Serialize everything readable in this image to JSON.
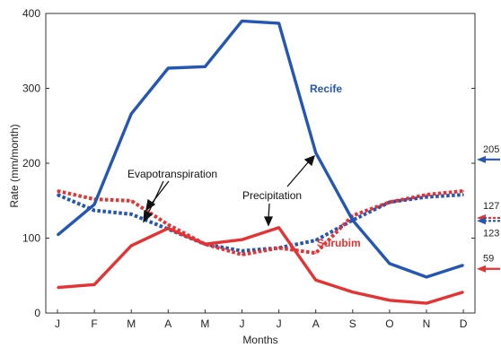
{
  "chart_data": {
    "type": "line",
    "xlabel": "Months",
    "ylabel": "Rate (mm/month)",
    "ylim": [
      0,
      400
    ],
    "yticks": [
      0,
      100,
      200,
      300,
      400
    ],
    "categories": [
      "J",
      "F",
      "M",
      "A",
      "M",
      "J",
      "J",
      "A",
      "S",
      "O",
      "N",
      "D"
    ],
    "series": [
      {
        "name": "Recife",
        "kind": "Precipitation",
        "style": "solid",
        "color": "#2456b4",
        "values": [
          104,
          145,
          266,
          327,
          329,
          390,
          387,
          214,
          124,
          66,
          48,
          64
        ]
      },
      {
        "kind": "Evapotranspiration",
        "style": "dotted",
        "color": "#2456b4",
        "values": [
          158,
          137,
          132,
          112,
          92,
          83,
          87,
          97,
          124,
          148,
          155,
          158
        ]
      },
      {
        "name": "Surubim",
        "kind": "Precipitation",
        "style": "solid",
        "color": "#e53232",
        "values": [
          34,
          38,
          90,
          113,
          92,
          98,
          114,
          44,
          28,
          17,
          13,
          28
        ]
      },
      {
        "kind": "Evapotranspiration",
        "style": "dotted",
        "color": "#e53232",
        "values": [
          163,
          152,
          150,
          118,
          92,
          78,
          87,
          80,
          130,
          148,
          158,
          163
        ]
      }
    ],
    "series_labels": [
      {
        "text": "Recife",
        "color": "#2456b4"
      },
      {
        "text": "Surubim",
        "color": "#e53232"
      }
    ],
    "annotations": {
      "evapotranspiration": "Evapotranspiration",
      "precipitation": "Precipitation"
    },
    "annual_means": [
      {
        "value": 205,
        "label": "205",
        "color": "#2456b4",
        "style": "solid"
      },
      {
        "value": 127,
        "label": "127",
        "color": "#e53232",
        "style": "dotted"
      },
      {
        "value": 123,
        "label": "123",
        "color": "#2456b4",
        "style": "dotted"
      },
      {
        "value": 59,
        "label": "59",
        "color": "#e53232",
        "style": "solid"
      }
    ],
    "grid": false,
    "legend": "none"
  }
}
